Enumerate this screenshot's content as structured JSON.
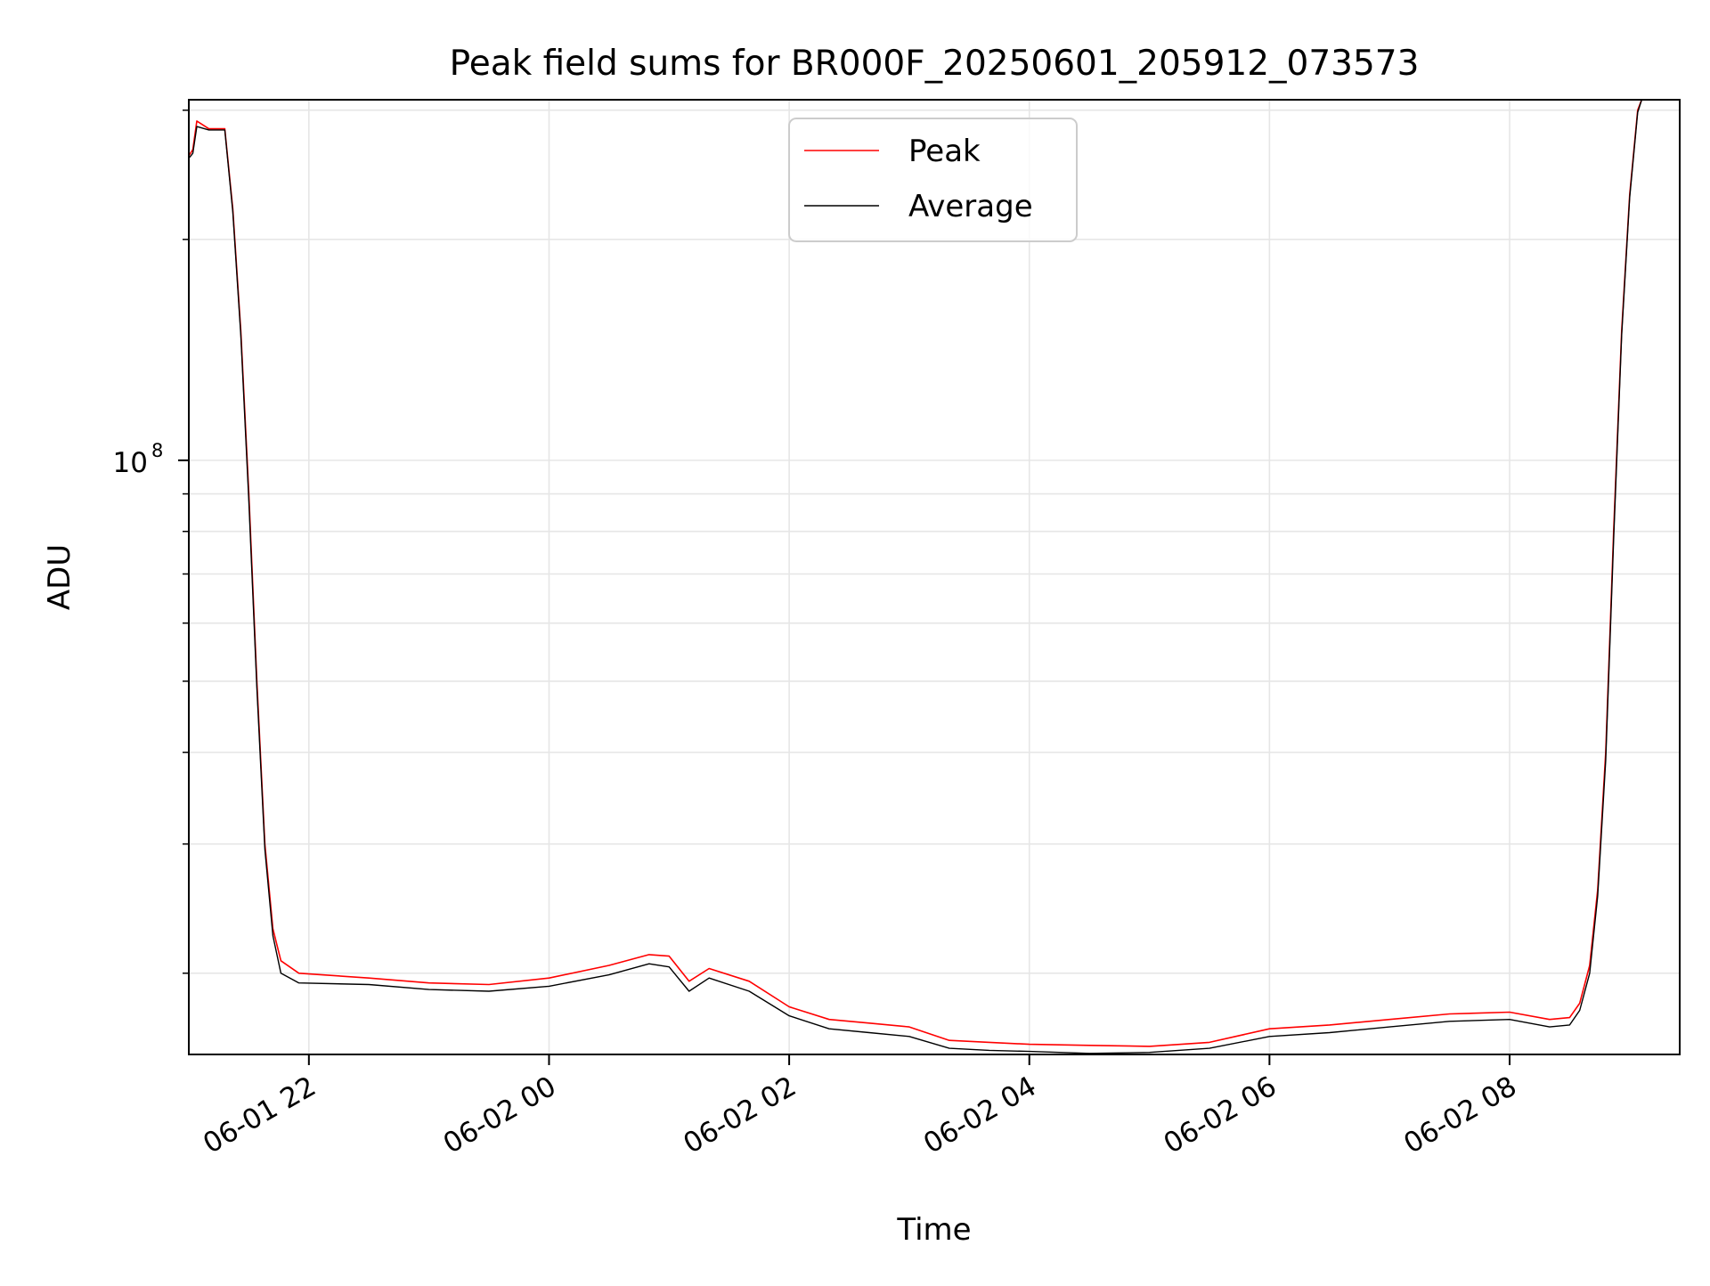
{
  "chart_data": {
    "type": "line",
    "title": "Peak field sums for BR000F_20250601_205912_073573",
    "xlabel": "Time",
    "ylabel": "ADU",
    "y_scale": "log",
    "ylim": [
      15500000,
      310000000
    ],
    "xlim": [
      "2025-06-01 21:00",
      "2025-06-02 09:25"
    ],
    "grid": true,
    "legend_position": "upper center",
    "x_ticks": [
      {
        "t": "2025-06-01 22:00",
        "label": "06-01 22"
      },
      {
        "t": "2025-06-02 00:00",
        "label": "06-02 00"
      },
      {
        "t": "2025-06-02 02:00",
        "label": "06-02 02"
      },
      {
        "t": "2025-06-02 04:00",
        "label": "06-02 04"
      },
      {
        "t": "2025-06-02 06:00",
        "label": "06-02 06"
      },
      {
        "t": "2025-06-02 08:00",
        "label": "06-02 08"
      }
    ],
    "y_major_ticks": [
      {
        "value": 100000000,
        "base": "10",
        "exp": "8"
      }
    ],
    "y_minor_ticks": [
      20000000,
      30000000,
      40000000,
      50000000,
      60000000,
      70000000,
      80000000,
      90000000,
      200000000,
      300000000
    ],
    "series": [
      {
        "name": "Peak",
        "color": "#ff0000",
        "points": [
          [
            "2025-06-01 21:00",
            260000000
          ],
          [
            "2025-06-01 21:02",
            265000000
          ],
          [
            "2025-06-01 21:04",
            290000000
          ],
          [
            "2025-06-01 21:10",
            283000000
          ],
          [
            "2025-06-01 21:18",
            283000000
          ],
          [
            "2025-06-01 21:22",
            220000000
          ],
          [
            "2025-06-01 21:26",
            150000000
          ],
          [
            "2025-06-01 21:30",
            90000000
          ],
          [
            "2025-06-01 21:34",
            50000000
          ],
          [
            "2025-06-01 21:38",
            30000000
          ],
          [
            "2025-06-01 21:42",
            23000000
          ],
          [
            "2025-06-01 21:46",
            20800000
          ],
          [
            "2025-06-01 21:55",
            20000000
          ],
          [
            "2025-06-01 22:30",
            19700000
          ],
          [
            "2025-06-01 23:00",
            19400000
          ],
          [
            "2025-06-01 23:30",
            19300000
          ],
          [
            "2025-06-02 00:00",
            19700000
          ],
          [
            "2025-06-02 00:30",
            20500000
          ],
          [
            "2025-06-02 00:50",
            21200000
          ],
          [
            "2025-06-02 01:00",
            21100000
          ],
          [
            "2025-06-02 01:10",
            19500000
          ],
          [
            "2025-06-02 01:20",
            20300000
          ],
          [
            "2025-06-02 01:40",
            19500000
          ],
          [
            "2025-06-02 02:00",
            18000000
          ],
          [
            "2025-06-02 02:20",
            17300000
          ],
          [
            "2025-06-02 02:40",
            17100000
          ],
          [
            "2025-06-02 03:00",
            16900000
          ],
          [
            "2025-06-02 03:20",
            16200000
          ],
          [
            "2025-06-02 03:40",
            16100000
          ],
          [
            "2025-06-02 04:00",
            16000000
          ],
          [
            "2025-06-02 04:30",
            15950000
          ],
          [
            "2025-06-02 05:00",
            15900000
          ],
          [
            "2025-06-02 05:30",
            16100000
          ],
          [
            "2025-06-02 06:00",
            16800000
          ],
          [
            "2025-06-02 06:30",
            17000000
          ],
          [
            "2025-06-02 07:00",
            17300000
          ],
          [
            "2025-06-02 07:30",
            17600000
          ],
          [
            "2025-06-02 08:00",
            17700000
          ],
          [
            "2025-06-02 08:20",
            17300000
          ],
          [
            "2025-06-02 08:30",
            17400000
          ],
          [
            "2025-06-02 08:35",
            18200000
          ],
          [
            "2025-06-02 08:40",
            20500000
          ],
          [
            "2025-06-02 08:44",
            26000000
          ],
          [
            "2025-06-02 08:48",
            40000000
          ],
          [
            "2025-06-02 08:52",
            80000000
          ],
          [
            "2025-06-02 08:56",
            150000000
          ],
          [
            "2025-06-02 09:00",
            230000000
          ],
          [
            "2025-06-02 09:04",
            300000000
          ],
          [
            "2025-06-02 09:06",
            310000000
          ]
        ]
      },
      {
        "name": "Average",
        "color": "#000000",
        "points": [
          [
            "2025-06-01 21:00",
            258000000
          ],
          [
            "2025-06-01 21:02",
            262000000
          ],
          [
            "2025-06-01 21:04",
            285000000
          ],
          [
            "2025-06-01 21:10",
            282000000
          ],
          [
            "2025-06-01 21:18",
            282000000
          ],
          [
            "2025-06-01 21:22",
            218000000
          ],
          [
            "2025-06-01 21:26",
            148000000
          ],
          [
            "2025-06-01 21:30",
            88000000
          ],
          [
            "2025-06-01 21:34",
            49000000
          ],
          [
            "2025-06-01 21:38",
            29500000
          ],
          [
            "2025-06-01 21:42",
            22500000
          ],
          [
            "2025-06-01 21:46",
            20000000
          ],
          [
            "2025-06-01 21:55",
            19400000
          ],
          [
            "2025-06-01 22:30",
            19300000
          ],
          [
            "2025-06-01 23:00",
            19000000
          ],
          [
            "2025-06-01 23:30",
            18900000
          ],
          [
            "2025-06-02 00:00",
            19200000
          ],
          [
            "2025-06-02 00:30",
            19900000
          ],
          [
            "2025-06-02 00:50",
            20600000
          ],
          [
            "2025-06-02 01:00",
            20400000
          ],
          [
            "2025-06-02 01:10",
            18900000
          ],
          [
            "2025-06-02 01:20",
            19700000
          ],
          [
            "2025-06-02 01:40",
            18900000
          ],
          [
            "2025-06-02 02:00",
            17500000
          ],
          [
            "2025-06-02 02:20",
            16800000
          ],
          [
            "2025-06-02 02:40",
            16600000
          ],
          [
            "2025-06-02 03:00",
            16400000
          ],
          [
            "2025-06-02 03:20",
            15800000
          ],
          [
            "2025-06-02 03:40",
            15700000
          ],
          [
            "2025-06-02 04:00",
            15650000
          ],
          [
            "2025-06-02 04:30",
            15550000
          ],
          [
            "2025-06-02 05:00",
            15600000
          ],
          [
            "2025-06-02 05:30",
            15800000
          ],
          [
            "2025-06-02 06:00",
            16400000
          ],
          [
            "2025-06-02 06:30",
            16600000
          ],
          [
            "2025-06-02 07:00",
            16900000
          ],
          [
            "2025-06-02 07:30",
            17200000
          ],
          [
            "2025-06-02 08:00",
            17300000
          ],
          [
            "2025-06-02 08:20",
            16900000
          ],
          [
            "2025-06-02 08:30",
            17000000
          ],
          [
            "2025-06-02 08:35",
            17800000
          ],
          [
            "2025-06-02 08:40",
            20000000
          ],
          [
            "2025-06-02 08:44",
            25500000
          ],
          [
            "2025-06-02 08:48",
            39000000
          ],
          [
            "2025-06-02 08:52",
            78000000
          ],
          [
            "2025-06-02 08:56",
            148000000
          ],
          [
            "2025-06-02 09:00",
            228000000
          ],
          [
            "2025-06-02 09:04",
            298000000
          ],
          [
            "2025-06-02 09:06",
            310000000
          ]
        ]
      }
    ]
  }
}
